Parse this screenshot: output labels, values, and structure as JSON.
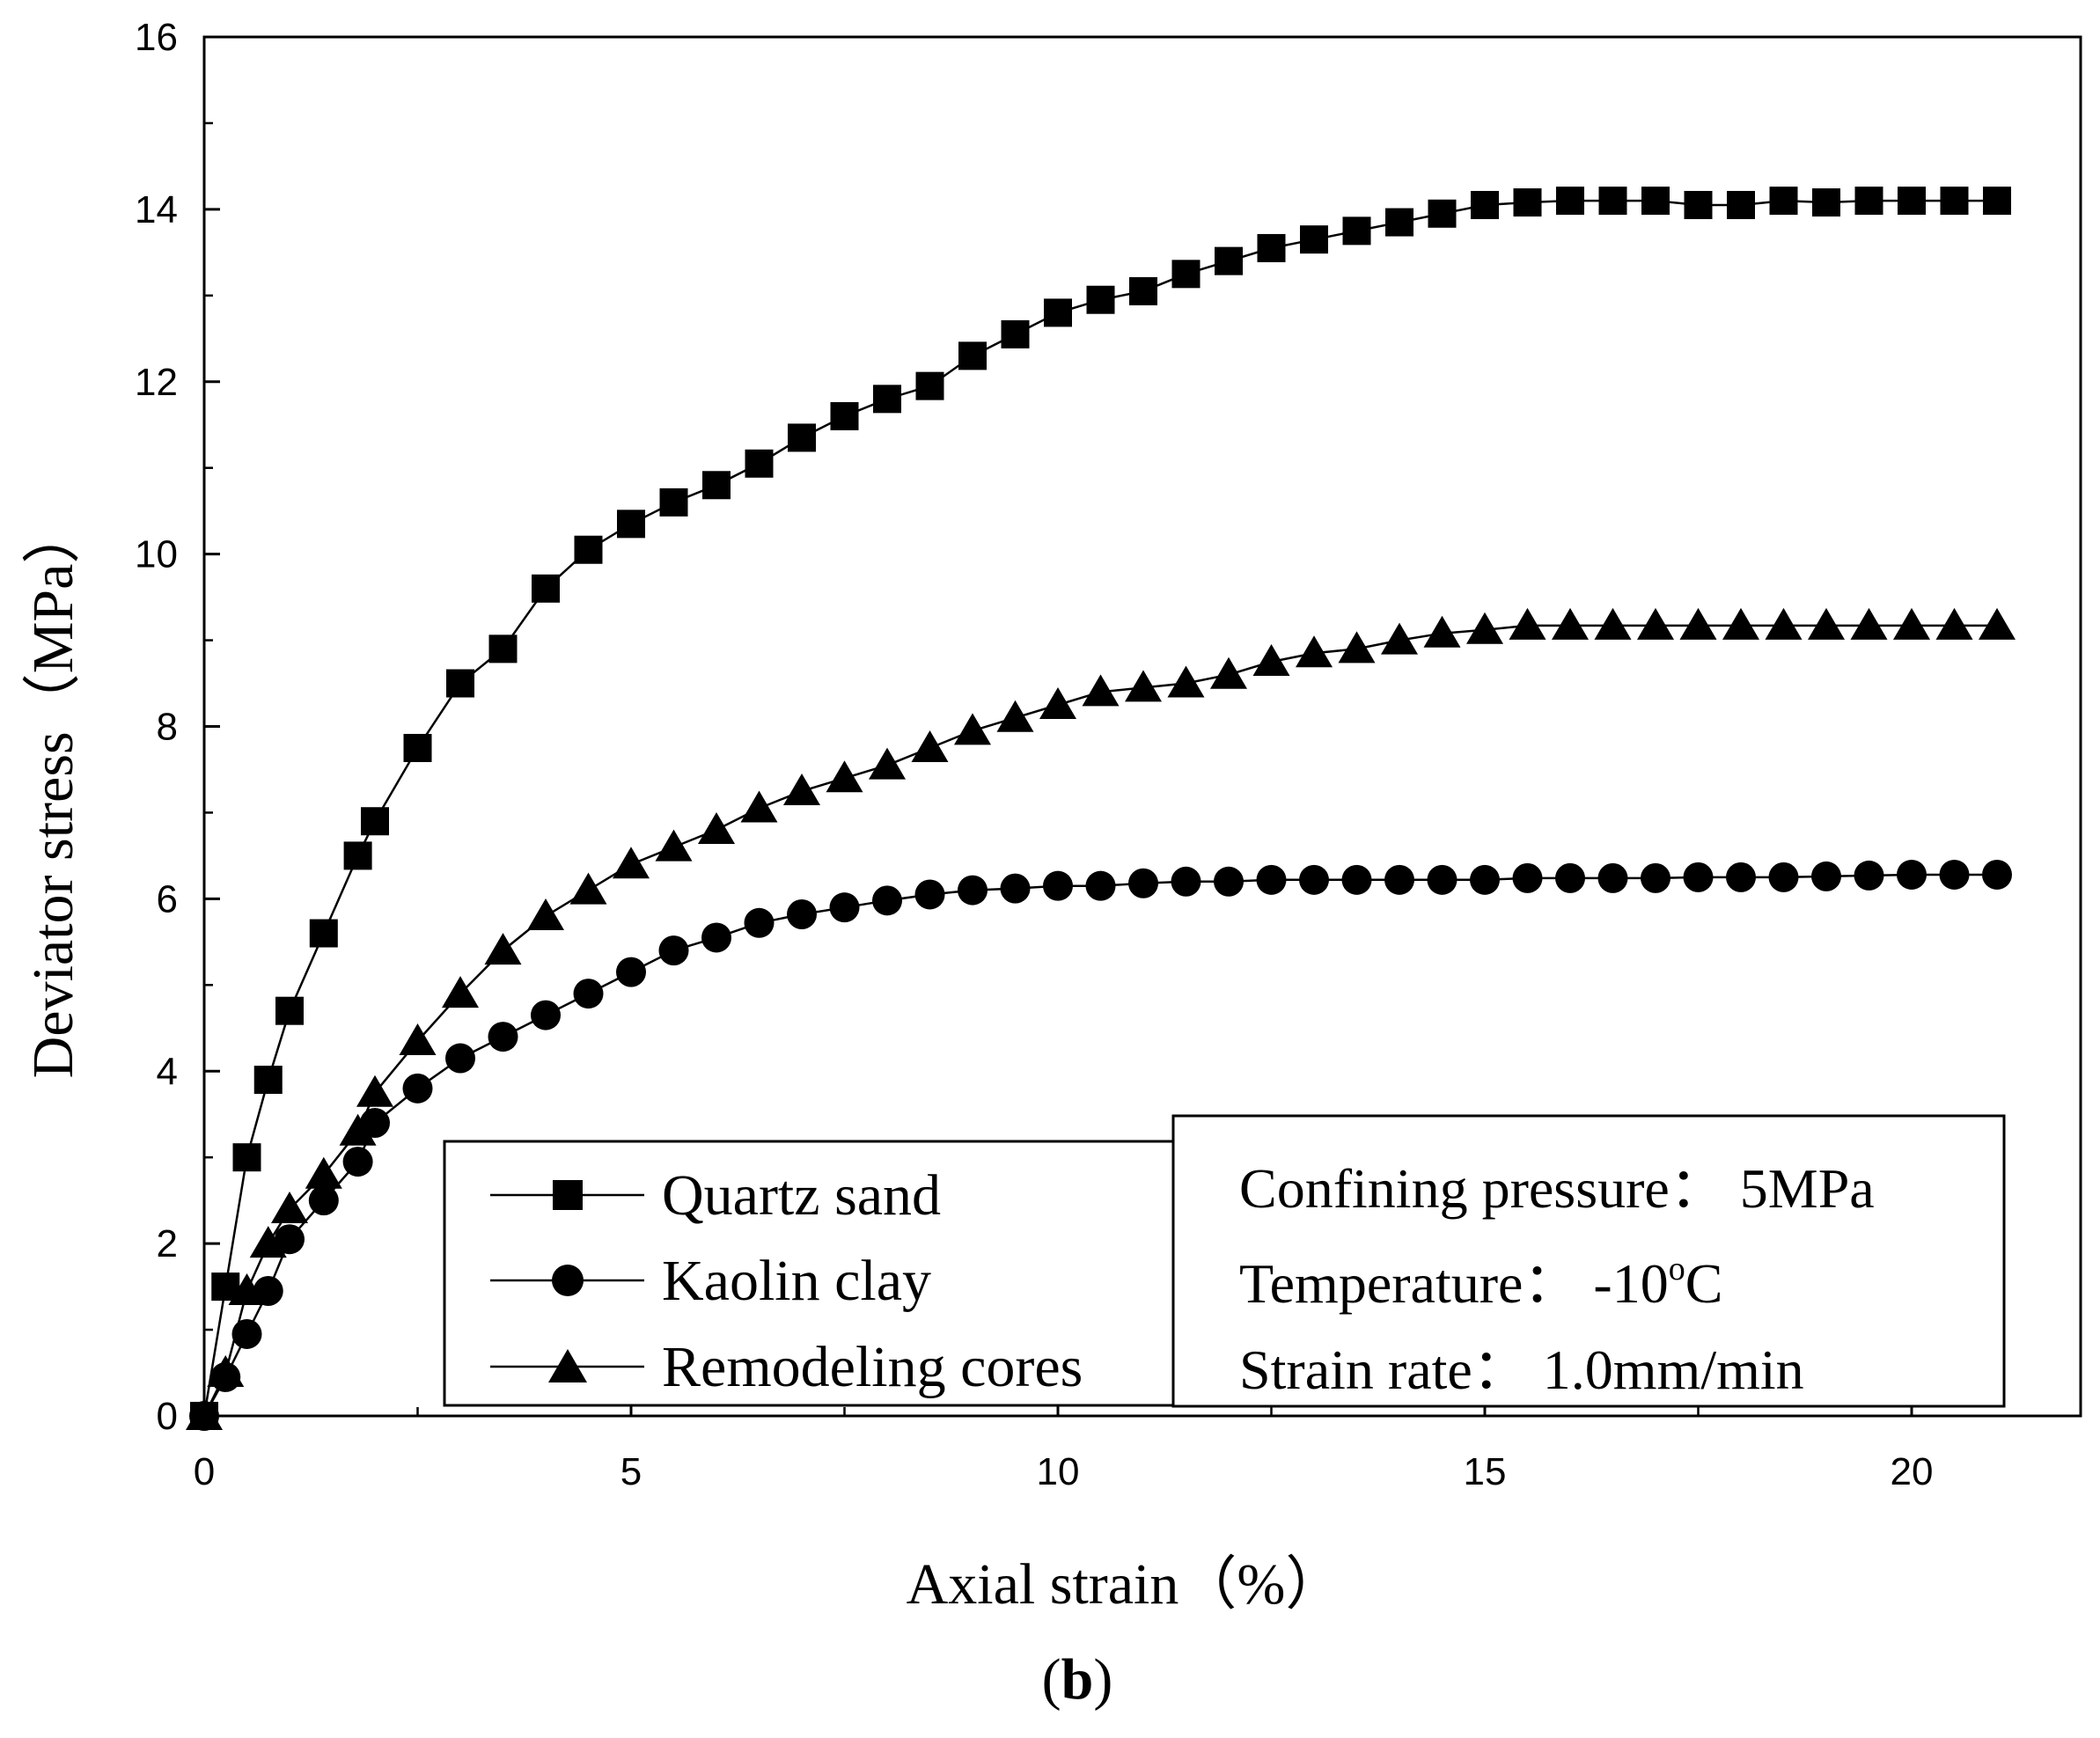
{
  "chart_data": {
    "type": "line",
    "title": "",
    "xlabel": "Axial strain（%）",
    "ylabel": "Deviator stress（MPa）",
    "xlim": [
      0,
      22
    ],
    "ylim": [
      0,
      16
    ],
    "xticks": [
      0,
      5,
      10,
      15,
      20
    ],
    "yticks": [
      0,
      2,
      4,
      6,
      8,
      10,
      12,
      14,
      16
    ],
    "legend_position": "bottom-center",
    "series": [
      {
        "name": "Quartz sand",
        "marker": "square",
        "x": [
          0,
          0.25,
          0.5,
          0.75,
          1.0,
          1.4,
          1.8,
          2.0,
          2.5,
          3.0,
          3.5,
          4.0,
          4.5,
          5.0,
          5.5,
          6.0,
          6.5,
          7.0,
          7.5,
          8.0,
          8.5,
          9.0,
          9.5,
          10.0,
          10.5,
          11.0,
          11.5,
          12.0,
          12.5,
          13.0,
          13.5,
          14.0,
          14.5,
          15.0,
          15.5,
          16.0,
          16.5,
          17.0,
          17.5,
          18.0,
          18.5,
          19.0,
          19.5,
          20.0,
          20.5,
          21.0
        ],
        "y": [
          0,
          1.5,
          3.0,
          3.9,
          4.7,
          5.6,
          6.5,
          6.9,
          7.75,
          8.5,
          8.9,
          9.6,
          10.05,
          10.35,
          10.6,
          10.8,
          11.05,
          11.35,
          11.6,
          11.8,
          11.95,
          12.3,
          12.55,
          12.8,
          12.95,
          13.05,
          13.25,
          13.4,
          13.55,
          13.65,
          13.75,
          13.85,
          13.95,
          14.05,
          14.08,
          14.1,
          14.1,
          14.1,
          14.05,
          14.05,
          14.1,
          14.08,
          14.1,
          14.1,
          14.1,
          14.1
        ]
      },
      {
        "name": "Kaolin clay",
        "marker": "circle",
        "x": [
          0,
          0.25,
          0.5,
          0.75,
          1.0,
          1.4,
          1.8,
          2.0,
          2.5,
          3.0,
          3.5,
          4.0,
          4.5,
          5.0,
          5.5,
          6.0,
          6.5,
          7.0,
          7.5,
          8.0,
          8.5,
          9.0,
          9.5,
          10.0,
          10.5,
          11.0,
          11.5,
          12.0,
          12.5,
          13.0,
          13.5,
          14.0,
          14.5,
          15.0,
          15.5,
          16.0,
          16.5,
          17.0,
          17.5,
          18.0,
          18.5,
          19.0,
          19.5,
          20.0,
          20.5,
          21.0
        ],
        "y": [
          0,
          0.45,
          0.95,
          1.45,
          2.05,
          2.5,
          2.95,
          3.4,
          3.8,
          4.15,
          4.4,
          4.65,
          4.9,
          5.15,
          5.4,
          5.55,
          5.72,
          5.82,
          5.9,
          5.98,
          6.05,
          6.1,
          6.12,
          6.15,
          6.15,
          6.18,
          6.2,
          6.2,
          6.22,
          6.22,
          6.22,
          6.22,
          6.22,
          6.22,
          6.24,
          6.24,
          6.24,
          6.24,
          6.25,
          6.25,
          6.25,
          6.26,
          6.27,
          6.28,
          6.28,
          6.28
        ]
      },
      {
        "name": "Remodeling cores",
        "marker": "triangle",
        "x": [
          0,
          0.25,
          0.5,
          0.75,
          1.0,
          1.4,
          1.8,
          2.0,
          2.5,
          3.0,
          3.5,
          4.0,
          4.5,
          5.0,
          5.5,
          6.0,
          6.5,
          7.0,
          7.5,
          8.0,
          8.5,
          9.0,
          9.5,
          10.0,
          10.5,
          11.0,
          11.5,
          12.0,
          12.5,
          13.0,
          13.5,
          14.0,
          14.5,
          15.0,
          15.5,
          16.0,
          16.5,
          17.0,
          17.5,
          18.0,
          18.5,
          19.0,
          19.5,
          20.0,
          20.5,
          21.0
        ],
        "y": [
          0,
          0.5,
          1.45,
          2.0,
          2.4,
          2.8,
          3.3,
          3.75,
          4.35,
          4.9,
          5.4,
          5.8,
          6.1,
          6.4,
          6.6,
          6.8,
          7.05,
          7.25,
          7.4,
          7.55,
          7.75,
          7.95,
          8.1,
          8.25,
          8.4,
          8.45,
          8.5,
          8.6,
          8.75,
          8.85,
          8.9,
          9.0,
          9.08,
          9.12,
          9.17,
          9.17,
          9.17,
          9.17,
          9.17,
          9.17,
          9.17,
          9.17,
          9.17,
          9.17,
          9.17,
          9.17
        ]
      }
    ],
    "annotation": {
      "confining_label": "Confining pressure： 5MPa",
      "temperature_label": "Temperature： -10",
      "temperature_degree": "o",
      "temperature_unit": "C",
      "strain_rate_label": "Strain rate： 1.0mm/min"
    },
    "caption": {
      "open": "(",
      "letter": "b",
      "close": ")"
    }
  }
}
